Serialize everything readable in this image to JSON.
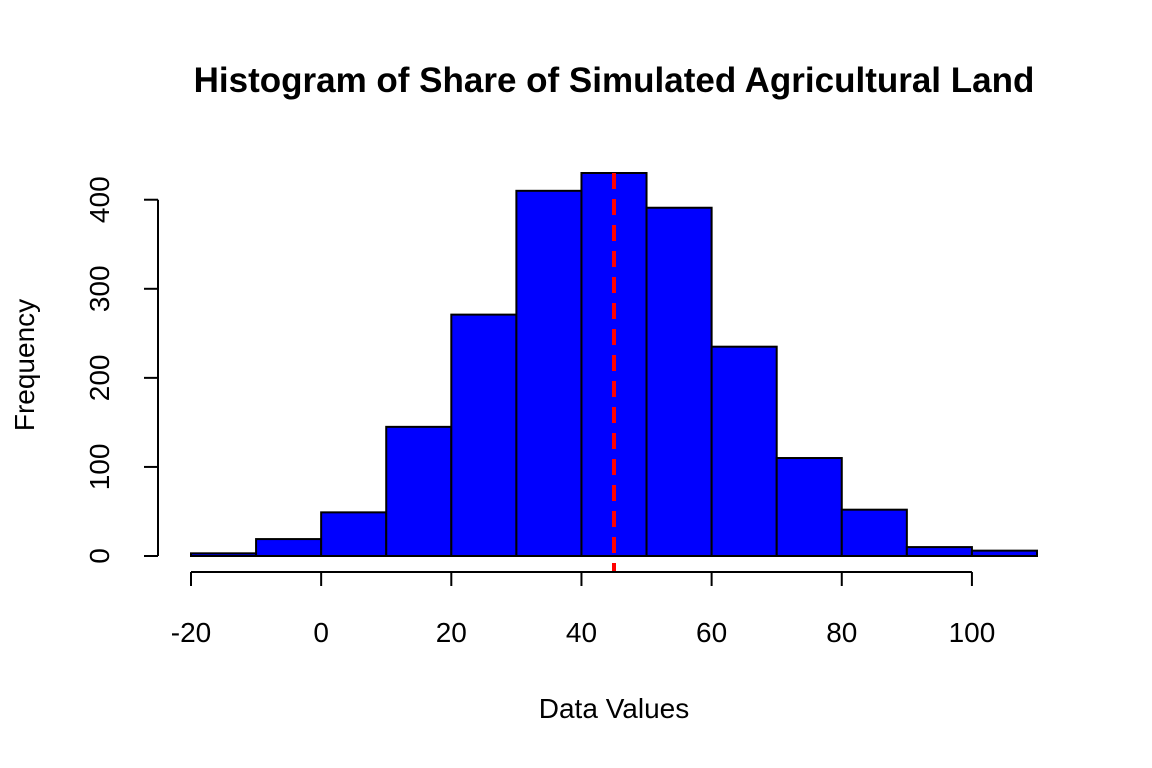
{
  "chart_data": {
    "type": "bar",
    "title": "Histogram of Share of Simulated Agricultural Land",
    "xlabel": "Data Values",
    "ylabel": "Frequency",
    "bin_edges": [
      -20,
      -10,
      0,
      10,
      20,
      30,
      40,
      50,
      60,
      70,
      80,
      90,
      100,
      110
    ],
    "values": [
      3,
      19,
      49,
      145,
      271,
      410,
      430,
      391,
      235,
      110,
      52,
      10,
      6
    ],
    "xlim": [
      -20,
      110
    ],
    "ylim": [
      0,
      430
    ],
    "x_ticks": [
      -20,
      0,
      20,
      40,
      60,
      80,
      100
    ],
    "x_tick_labels": [
      "-20",
      "0",
      "20",
      "40",
      "60",
      "80",
      "100"
    ],
    "y_ticks": [
      0,
      100,
      200,
      300,
      400
    ],
    "y_tick_labels": [
      "0",
      "100",
      "200",
      "300",
      "400"
    ],
    "bar_color": "#0000ff",
    "bar_border_color": "#000000",
    "reference_line": {
      "x": 45,
      "color": "#ff0000",
      "style": "dashed"
    },
    "grid": false,
    "legend": "none"
  }
}
